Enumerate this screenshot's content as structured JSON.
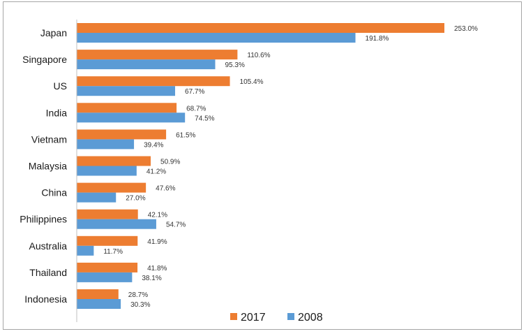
{
  "chart_data": {
    "type": "bar",
    "orientation": "horizontal",
    "categories": [
      "Japan",
      "Singapore",
      "US",
      "India",
      "Vietnam",
      "Malaysia",
      "China",
      "Philippines",
      "Australia",
      "Thailand",
      "Indonesia"
    ],
    "series": [
      {
        "name": "2017",
        "color": "#ED7D31",
        "values": [
          253.0,
          110.6,
          105.4,
          68.7,
          61.5,
          50.9,
          47.6,
          42.1,
          41.9,
          41.8,
          28.7
        ],
        "labels": [
          "253.0%",
          "110.6%",
          "105.4%",
          "68.7%",
          "61.5%",
          "50.9%",
          "47.6%",
          "42.1%",
          "41.9%",
          "41.8%",
          "28.7%"
        ]
      },
      {
        "name": "2008",
        "color": "#5B9BD5",
        "values": [
          191.8,
          95.3,
          67.7,
          74.5,
          39.4,
          41.2,
          27.0,
          54.7,
          11.7,
          38.1,
          30.3
        ],
        "labels": [
          "191.8%",
          "95.3%",
          "67.7%",
          "74.5%",
          "39.4%",
          "41.2%",
          "27.0%",
          "54.7%",
          "11.7%",
          "38.1%",
          "30.3%"
        ]
      }
    ],
    "xlim": [
      0,
      253.0
    ],
    "grid": false,
    "legend_position": "bottom"
  }
}
